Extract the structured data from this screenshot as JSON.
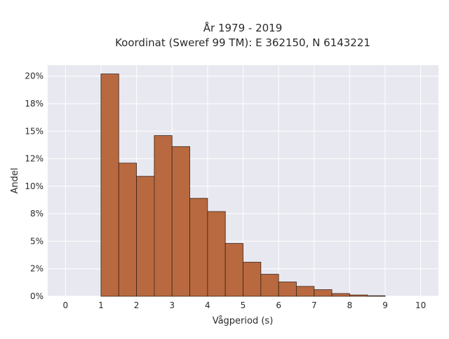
{
  "chart_data": {
    "type": "bar",
    "title_lines": [
      "År 1979 - 2019",
      "Koordinat (Sweref 99 TM): E 362150, N 6143221"
    ],
    "xlabel": "Vågperiod (s)",
    "ylabel": "Andel",
    "bin_width": 0.5,
    "bin_starts": [
      1.0,
      1.5,
      2.0,
      2.5,
      3.0,
      3.5,
      4.0,
      4.5,
      5.0,
      5.5,
      6.0,
      6.5,
      7.0,
      7.5,
      8.0,
      8.5
    ],
    "values": [
      0.202,
      0.121,
      0.109,
      0.146,
      0.136,
      0.089,
      0.077,
      0.048,
      0.031,
      0.02,
      0.013,
      0.009,
      0.006,
      0.0025,
      0.0012,
      0.0005
    ],
    "xlim": [
      -0.5,
      10.5
    ],
    "ylim": [
      0,
      0.21
    ],
    "x_ticks": [
      0,
      1,
      2,
      3,
      4,
      5,
      6,
      7,
      8,
      9,
      10
    ],
    "x_tick_labels": [
      "0",
      "1",
      "2",
      "3",
      "4",
      "5",
      "6",
      "7",
      "8",
      "9",
      "10"
    ],
    "y_ticks": [
      0,
      0.025,
      0.05,
      0.075,
      0.1,
      0.125,
      0.15,
      0.175,
      0.2
    ],
    "y_tick_labels": [
      "0%",
      "2%",
      "5%",
      "8%",
      "10%",
      "12%",
      "15%",
      "18%",
      "20%"
    ],
    "grid": true,
    "colors": {
      "bar_fill": "#b9693f",
      "bar_edge": "#3a2418",
      "plot_bg": "#e8e8f0",
      "grid": "#ffffff"
    }
  }
}
